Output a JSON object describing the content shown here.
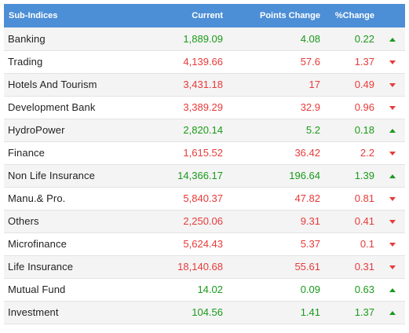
{
  "headers": {
    "name": "Sub-Indices",
    "current": "Current",
    "points_change": "Points Change",
    "pct_change": "%Change"
  },
  "colors": {
    "header_bg": "#4d8fd6",
    "up": "#1a9a1a",
    "down": "#e83a3a"
  },
  "rows": [
    {
      "name": "Banking",
      "current": "1,889.09",
      "points": "4.08",
      "pct": "0.22",
      "dir": "up",
      "icon": "triangle-up-icon"
    },
    {
      "name": "Trading",
      "current": "4,139.66",
      "points": "57.6",
      "pct": "1.37",
      "dir": "down",
      "icon": "triangle-down-icon"
    },
    {
      "name": "Hotels And Tourism",
      "current": "3,431.18",
      "points": "17",
      "pct": "0.49",
      "dir": "down",
      "icon": "triangle-down-icon"
    },
    {
      "name": "Development Bank",
      "current": "3,389.29",
      "points": "32.9",
      "pct": "0.96",
      "dir": "down",
      "icon": "triangle-down-icon"
    },
    {
      "name": "HydroPower",
      "current": "2,820.14",
      "points": "5.2",
      "pct": "0.18",
      "dir": "up",
      "icon": "triangle-up-icon"
    },
    {
      "name": "Finance",
      "current": "1,615.52",
      "points": "36.42",
      "pct": "2.2",
      "dir": "down",
      "icon": "triangle-down-icon"
    },
    {
      "name": "Non Life Insurance",
      "current": "14,366.17",
      "points": "196.64",
      "pct": "1.39",
      "dir": "up",
      "icon": "triangle-up-icon"
    },
    {
      "name": "Manu.& Pro.",
      "current": "5,840.37",
      "points": "47.82",
      "pct": "0.81",
      "dir": "down",
      "icon": "triangle-down-icon"
    },
    {
      "name": "Others",
      "current": "2,250.06",
      "points": "9.31",
      "pct": "0.41",
      "dir": "down",
      "icon": "triangle-down-icon"
    },
    {
      "name": "Microfinance",
      "current": "5,624.43",
      "points": "5.37",
      "pct": "0.1",
      "dir": "down",
      "icon": "triangle-down-icon"
    },
    {
      "name": "Life Insurance",
      "current": "18,140.68",
      "points": "55.61",
      "pct": "0.31",
      "dir": "down",
      "icon": "triangle-down-icon"
    },
    {
      "name": "Mutual Fund",
      "current": "14.02",
      "points": "0.09",
      "pct": "0.63",
      "dir": "up",
      "icon": "triangle-up-icon"
    },
    {
      "name": "Investment",
      "current": "104.56",
      "points": "1.41",
      "pct": "1.37",
      "dir": "up",
      "icon": "triangle-up-icon"
    }
  ]
}
